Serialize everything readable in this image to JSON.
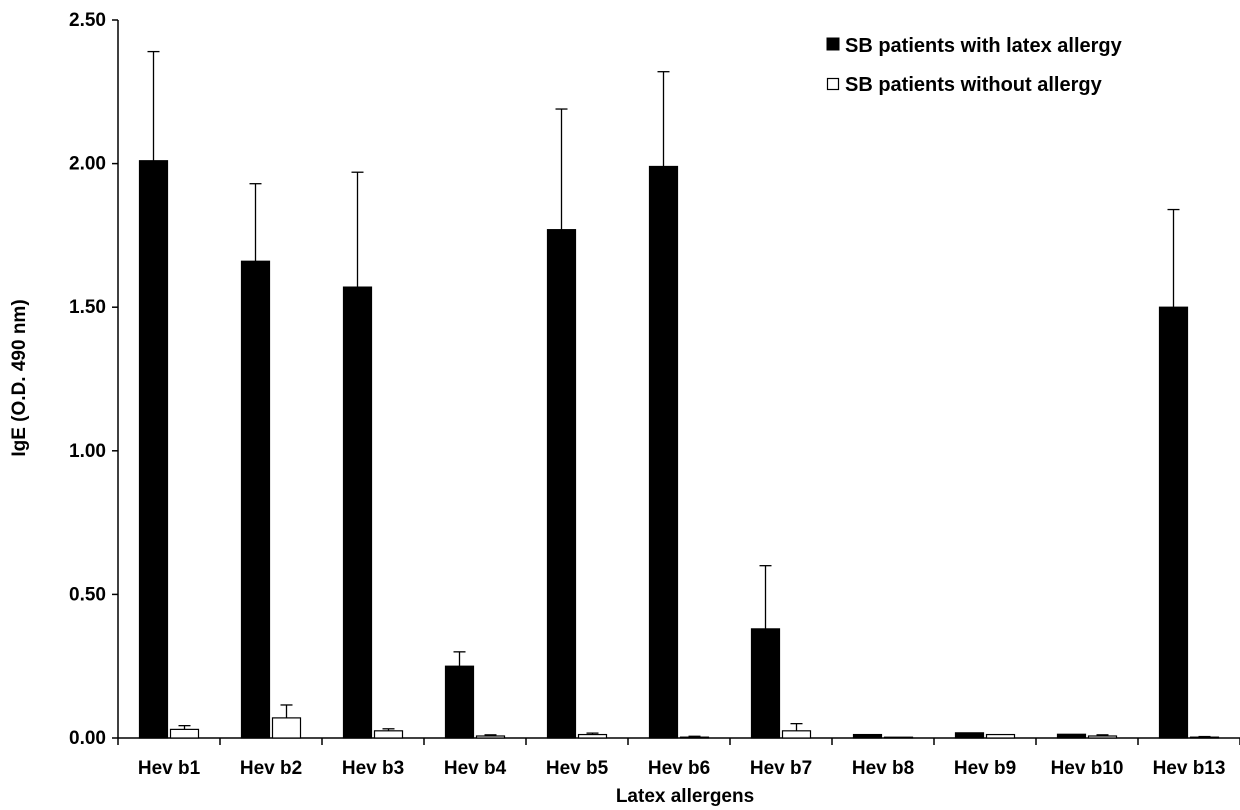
{
  "chart_data": {
    "type": "bar",
    "title": "",
    "xlabel": "Latex allergens",
    "ylabel": "IgE (O.D. 490 nm)",
    "ylim": [
      0,
      2.5
    ],
    "yticks": [
      "0.00",
      "0.50",
      "1.00",
      "1.50",
      "2.00",
      "2.50"
    ],
    "grid": false,
    "legend_position": "top-right",
    "categories": [
      "Hev b1",
      "Hev b2",
      "Hev b3",
      "Hev b4",
      "Hev b5",
      "Hev b6",
      "Hev b7",
      "Hev b8",
      "Hev b9",
      "Hev b10",
      "Hev b13"
    ],
    "series": [
      {
        "name": "SB patients with latex allergy",
        "color": "#000000",
        "values": [
          2.01,
          1.66,
          1.57,
          0.25,
          1.77,
          1.99,
          0.38,
          0.012,
          0.018,
          0.013,
          1.5
        ],
        "errors": [
          0.38,
          0.27,
          0.4,
          0.05,
          0.42,
          0.33,
          0.22,
          0.0,
          0.0,
          0.0,
          0.34
        ]
      },
      {
        "name": "SB patients without allergy",
        "color": "#ffffff",
        "values": [
          0.03,
          0.07,
          0.025,
          0.007,
          0.012,
          0.003,
          0.025,
          0.002,
          0.012,
          0.007,
          0.003
        ],
        "errors": [
          0.013,
          0.045,
          0.007,
          0.004,
          0.005,
          0.003,
          0.025,
          0.0,
          0.0,
          0.004,
          0.002
        ]
      }
    ]
  }
}
